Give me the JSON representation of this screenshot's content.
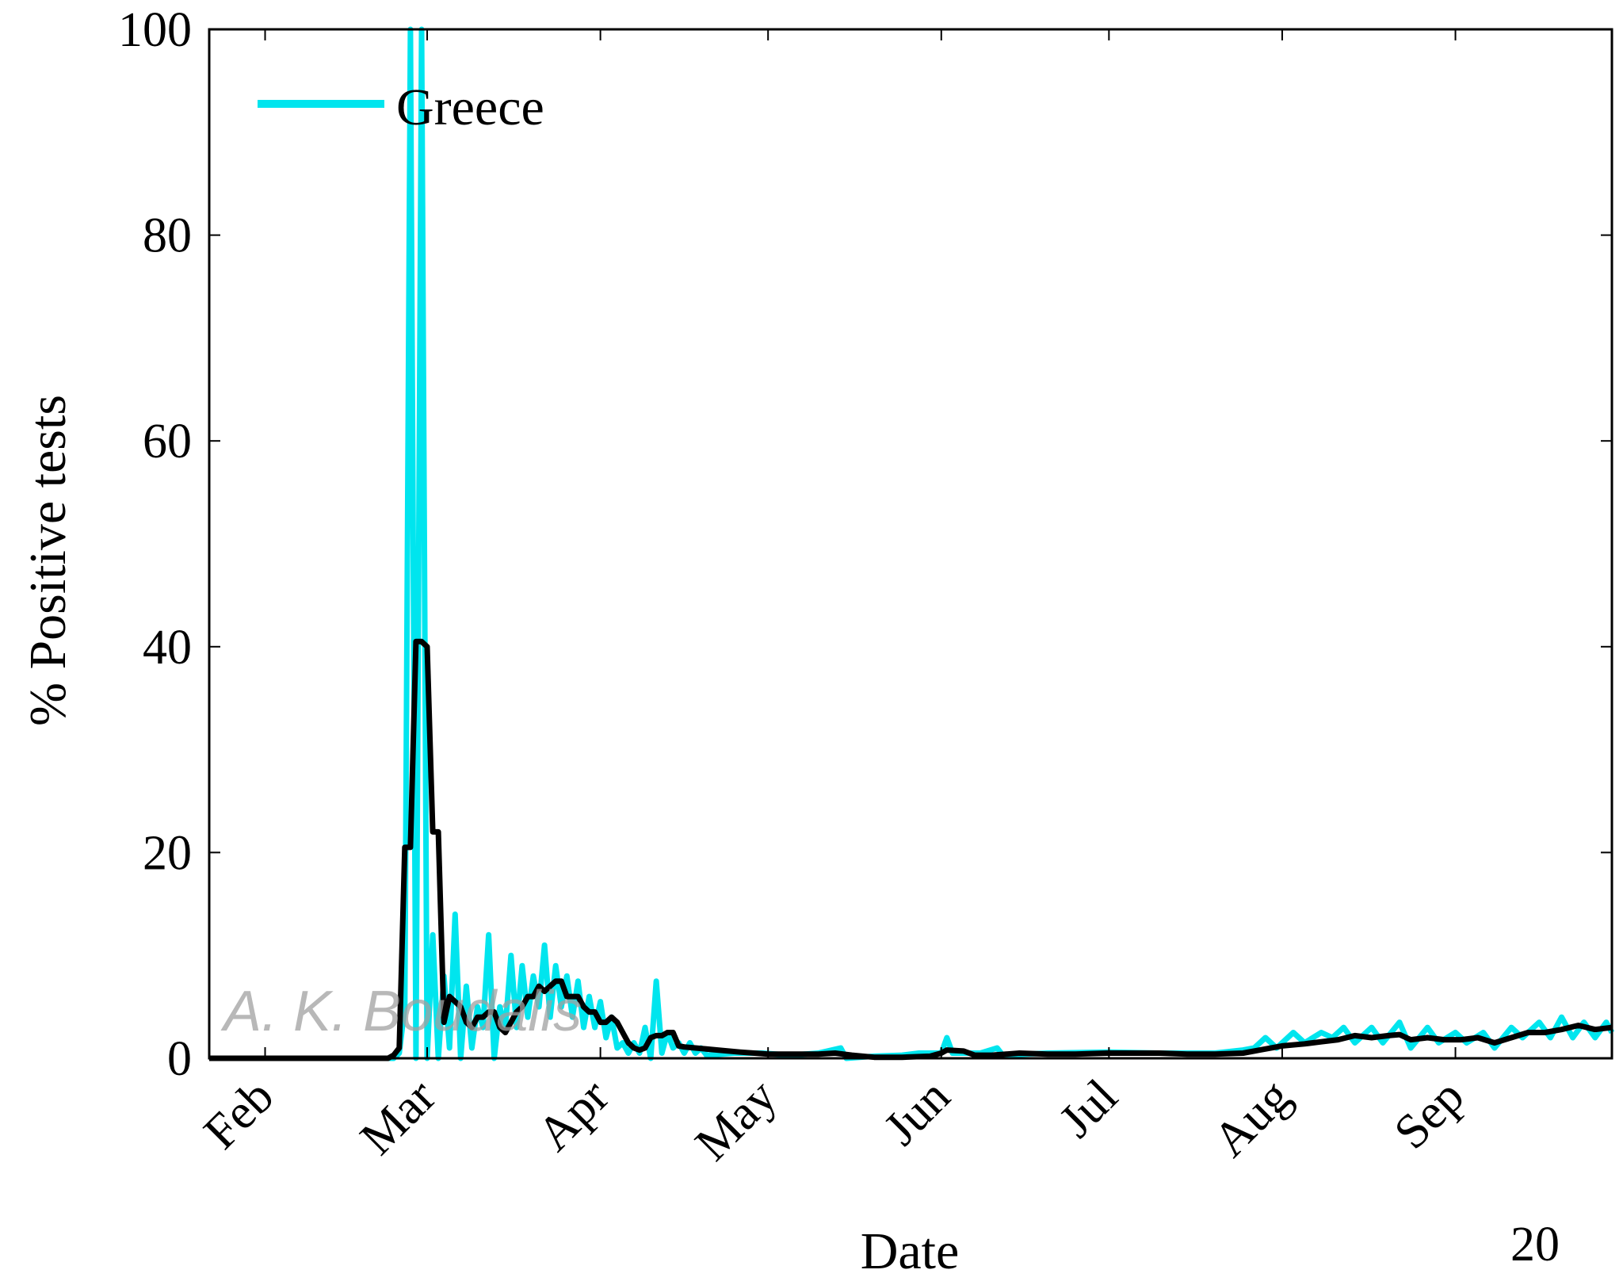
{
  "chart_data": {
    "type": "line",
    "xlabel": "Date",
    "ylabel": "% Positive tests",
    "ylim": [
      0,
      100
    ],
    "yticks": [
      "0",
      "20",
      "40",
      "60",
      "80",
      "100"
    ],
    "xlim": [
      "2020-01-22",
      "2020-09-29"
    ],
    "xtick_labels": [
      "Feb",
      "Mar",
      "Apr",
      "May",
      "Jun",
      "Jul",
      "Aug",
      "Sep"
    ],
    "xtick_dates": [
      "2020-02-01",
      "2020-03-01",
      "2020-04-01",
      "2020-05-01",
      "2020-06-01",
      "2020-07-01",
      "2020-08-01",
      "2020-09-01"
    ],
    "legend_position": "top-left",
    "corner_note": "20",
    "watermark": "A. K. Boudalis",
    "series": [
      {
        "name": "Greece",
        "color": "#00e5ee",
        "points": [
          [
            "2020-01-22",
            0
          ],
          [
            "2020-02-24",
            0
          ],
          [
            "2020-02-25",
            0.5
          ],
          [
            "2020-02-26",
            5
          ],
          [
            "2020-02-27",
            100
          ],
          [
            "2020-02-28",
            0
          ],
          [
            "2020-02-29",
            100
          ],
          [
            "2020-03-01",
            0
          ],
          [
            "2020-03-02",
            12
          ],
          [
            "2020-03-03",
            0
          ],
          [
            "2020-03-04",
            8
          ],
          [
            "2020-03-05",
            1
          ],
          [
            "2020-03-06",
            14
          ],
          [
            "2020-03-07",
            0
          ],
          [
            "2020-03-08",
            7
          ],
          [
            "2020-03-09",
            1
          ],
          [
            "2020-03-10",
            5
          ],
          [
            "2020-03-11",
            3
          ],
          [
            "2020-03-12",
            12
          ],
          [
            "2020-03-13",
            0
          ],
          [
            "2020-03-14",
            5
          ],
          [
            "2020-03-15",
            3
          ],
          [
            "2020-03-16",
            10
          ],
          [
            "2020-03-17",
            3
          ],
          [
            "2020-03-18",
            9
          ],
          [
            "2020-03-19",
            4
          ],
          [
            "2020-03-20",
            8
          ],
          [
            "2020-03-21",
            5
          ],
          [
            "2020-03-22",
            11
          ],
          [
            "2020-03-23",
            4
          ],
          [
            "2020-03-24",
            9
          ],
          [
            "2020-03-25",
            5
          ],
          [
            "2020-03-26",
            8
          ],
          [
            "2020-03-27",
            4
          ],
          [
            "2020-03-28",
            7.5
          ],
          [
            "2020-03-29",
            3
          ],
          [
            "2020-03-30",
            6
          ],
          [
            "2020-03-31",
            3
          ],
          [
            "2020-04-01",
            5.5
          ],
          [
            "2020-04-02",
            2
          ],
          [
            "2020-04-03",
            4
          ],
          [
            "2020-04-04",
            1
          ],
          [
            "2020-04-05",
            1.5
          ],
          [
            "2020-04-06",
            0.5
          ],
          [
            "2020-04-07",
            1.5
          ],
          [
            "2020-04-08",
            0.5
          ],
          [
            "2020-04-09",
            3
          ],
          [
            "2020-04-10",
            0
          ],
          [
            "2020-04-11",
            7.5
          ],
          [
            "2020-04-12",
            0.5
          ],
          [
            "2020-04-13",
            2.5
          ],
          [
            "2020-04-14",
            1
          ],
          [
            "2020-04-15",
            1.5
          ],
          [
            "2020-04-16",
            0.5
          ],
          [
            "2020-04-17",
            1.5
          ],
          [
            "2020-04-18",
            0.5
          ],
          [
            "2020-04-19",
            1
          ],
          [
            "2020-04-20",
            0.3
          ],
          [
            "2020-04-25",
            0.5
          ],
          [
            "2020-04-30",
            0.5
          ],
          [
            "2020-05-05",
            0.3
          ],
          [
            "2020-05-10",
            0.5
          ],
          [
            "2020-05-14",
            1
          ],
          [
            "2020-05-15",
            0
          ],
          [
            "2020-05-20",
            0.2
          ],
          [
            "2020-05-25",
            0.3
          ],
          [
            "2020-05-28",
            0.5
          ],
          [
            "2020-06-01",
            0.5
          ],
          [
            "2020-06-02",
            2
          ],
          [
            "2020-06-03",
            0.5
          ],
          [
            "2020-06-08",
            0.5
          ],
          [
            "2020-06-11",
            1
          ],
          [
            "2020-06-12",
            0.3
          ],
          [
            "2020-06-20",
            0.5
          ],
          [
            "2020-07-01",
            0.6
          ],
          [
            "2020-07-10",
            0.5
          ],
          [
            "2020-07-20",
            0.5
          ],
          [
            "2020-07-25",
            0.8
          ],
          [
            "2020-07-27",
            1
          ],
          [
            "2020-07-29",
            2
          ],
          [
            "2020-07-31",
            1
          ],
          [
            "2020-08-03",
            2.5
          ],
          [
            "2020-08-05",
            1.5
          ],
          [
            "2020-08-08",
            2.5
          ],
          [
            "2020-08-10",
            2
          ],
          [
            "2020-08-12",
            3
          ],
          [
            "2020-08-14",
            1.5
          ],
          [
            "2020-08-17",
            3
          ],
          [
            "2020-08-19",
            1.5
          ],
          [
            "2020-08-22",
            3.5
          ],
          [
            "2020-08-24",
            1
          ],
          [
            "2020-08-27",
            3
          ],
          [
            "2020-08-29",
            1.5
          ],
          [
            "2020-09-01",
            2.5
          ],
          [
            "2020-09-03",
            1.5
          ],
          [
            "2020-09-06",
            2.5
          ],
          [
            "2020-09-08",
            1
          ],
          [
            "2020-09-11",
            3
          ],
          [
            "2020-09-13",
            2
          ],
          [
            "2020-09-16",
            3.5
          ],
          [
            "2020-09-18",
            2
          ],
          [
            "2020-09-20",
            4
          ],
          [
            "2020-09-22",
            2
          ],
          [
            "2020-09-24",
            3.5
          ],
          [
            "2020-09-26",
            2
          ],
          [
            "2020-09-28",
            3.5
          ],
          [
            "2020-09-29",
            2.5
          ]
        ]
      },
      {
        "color": "#000000",
        "points": [
          [
            "2020-01-22",
            0
          ],
          [
            "2020-02-23",
            0
          ],
          [
            "2020-02-24",
            0.3
          ],
          [
            "2020-02-25",
            1
          ],
          [
            "2020-02-26",
            20.5
          ],
          [
            "2020-02-27",
            20.5
          ],
          [
            "2020-02-28",
            40.5
          ],
          [
            "2020-02-29",
            40.5
          ],
          [
            "2020-03-01",
            40
          ],
          [
            "2020-03-02",
            22
          ],
          [
            "2020-03-03",
            22
          ],
          [
            "2020-03-04",
            3.5
          ],
          [
            "2020-03-05",
            6
          ],
          [
            "2020-03-06",
            5.5
          ],
          [
            "2020-03-07",
            5
          ],
          [
            "2020-03-08",
            3.5
          ],
          [
            "2020-03-09",
            3
          ],
          [
            "2020-03-10",
            4
          ],
          [
            "2020-03-11",
            4
          ],
          [
            "2020-03-12",
            4.5
          ],
          [
            "2020-03-13",
            4.5
          ],
          [
            "2020-03-14",
            3
          ],
          [
            "2020-03-15",
            2.5
          ],
          [
            "2020-03-16",
            3.5
          ],
          [
            "2020-03-17",
            4.5
          ],
          [
            "2020-03-18",
            5
          ],
          [
            "2020-03-19",
            6
          ],
          [
            "2020-03-20",
            6
          ],
          [
            "2020-03-21",
            7
          ],
          [
            "2020-03-22",
            6.5
          ],
          [
            "2020-03-23",
            7
          ],
          [
            "2020-03-24",
            7.5
          ],
          [
            "2020-03-25",
            7.5
          ],
          [
            "2020-03-26",
            6
          ],
          [
            "2020-03-27",
            6
          ],
          [
            "2020-03-28",
            6
          ],
          [
            "2020-03-29",
            5
          ],
          [
            "2020-03-30",
            4.5
          ],
          [
            "2020-03-31",
            4.5
          ],
          [
            "2020-04-01",
            3.5
          ],
          [
            "2020-04-02",
            3.5
          ],
          [
            "2020-04-03",
            4
          ],
          [
            "2020-04-04",
            3.5
          ],
          [
            "2020-04-05",
            2.5
          ],
          [
            "2020-04-06",
            1.5
          ],
          [
            "2020-04-07",
            1
          ],
          [
            "2020-04-08",
            0.8
          ],
          [
            "2020-04-09",
            1
          ],
          [
            "2020-04-10",
            2
          ],
          [
            "2020-04-11",
            2.2
          ],
          [
            "2020-04-12",
            2.2
          ],
          [
            "2020-04-13",
            2.5
          ],
          [
            "2020-04-14",
            2.5
          ],
          [
            "2020-04-15",
            1.2
          ],
          [
            "2020-04-16",
            1.1
          ],
          [
            "2020-04-18",
            1
          ],
          [
            "2020-04-22",
            0.8
          ],
          [
            "2020-04-26",
            0.6
          ],
          [
            "2020-05-01",
            0.4
          ],
          [
            "2020-05-05",
            0.4
          ],
          [
            "2020-05-10",
            0.4
          ],
          [
            "2020-05-13",
            0.5
          ],
          [
            "2020-05-16",
            0.3
          ],
          [
            "2020-05-20",
            0.1
          ],
          [
            "2020-05-25",
            0.1
          ],
          [
            "2020-05-30",
            0.2
          ],
          [
            "2020-06-01",
            0.5
          ],
          [
            "2020-06-02",
            0.8
          ],
          [
            "2020-06-05",
            0.7
          ],
          [
            "2020-06-07",
            0.3
          ],
          [
            "2020-06-10",
            0.3
          ],
          [
            "2020-06-15",
            0.5
          ],
          [
            "2020-06-20",
            0.4
          ],
          [
            "2020-06-25",
            0.4
          ],
          [
            "2020-07-01",
            0.5
          ],
          [
            "2020-07-10",
            0.5
          ],
          [
            "2020-07-15",
            0.4
          ],
          [
            "2020-07-20",
            0.4
          ],
          [
            "2020-07-25",
            0.5
          ],
          [
            "2020-07-28",
            0.8
          ],
          [
            "2020-08-01",
            1.2
          ],
          [
            "2020-08-05",
            1.4
          ],
          [
            "2020-08-08",
            1.6
          ],
          [
            "2020-08-11",
            1.8
          ],
          [
            "2020-08-14",
            2.2
          ],
          [
            "2020-08-17",
            2
          ],
          [
            "2020-08-20",
            2.2
          ],
          [
            "2020-08-22",
            2.3
          ],
          [
            "2020-08-24",
            1.8
          ],
          [
            "2020-08-27",
            2
          ],
          [
            "2020-08-30",
            1.8
          ],
          [
            "2020-09-02",
            1.8
          ],
          [
            "2020-09-05",
            2
          ],
          [
            "2020-09-08",
            1.5
          ],
          [
            "2020-09-11",
            2
          ],
          [
            "2020-09-14",
            2.5
          ],
          [
            "2020-09-17",
            2.5
          ],
          [
            "2020-09-20",
            2.8
          ],
          [
            "2020-09-23",
            3.2
          ],
          [
            "2020-09-26",
            2.8
          ],
          [
            "2020-09-29",
            3
          ]
        ]
      }
    ]
  }
}
